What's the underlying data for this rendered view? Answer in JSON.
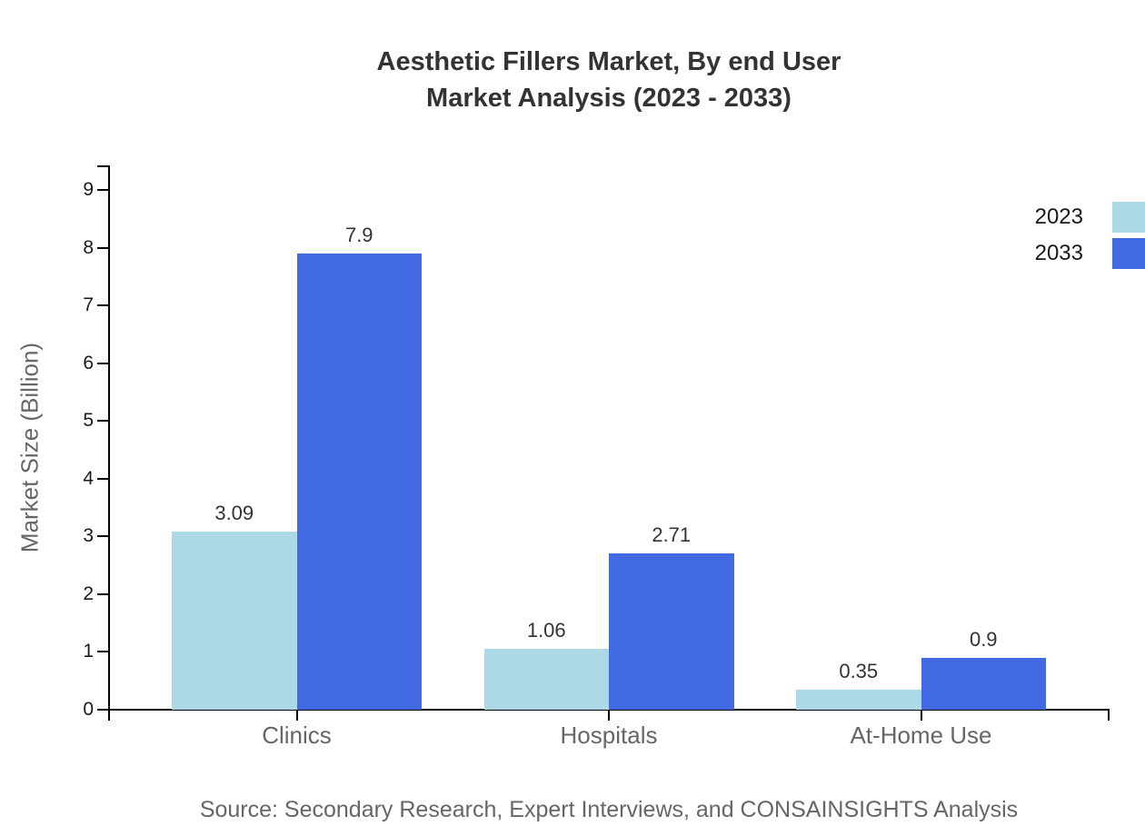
{
  "chart_data": {
    "type": "bar",
    "title_lines": [
      "Aesthetic Fillers Market, By end User",
      "Market Analysis (2023 - 2033)"
    ],
    "ylabel": "Market Size (Billion)",
    "xlabel": "",
    "categories": [
      "Clinics",
      "Hospitals",
      "At-Home Use"
    ],
    "series": [
      {
        "name": "2023",
        "color": "#ADD8E6",
        "values": [
          3.09,
          1.06,
          0.35
        ]
      },
      {
        "name": "2033",
        "color": "#4169E1",
        "values": [
          7.9,
          2.71,
          0.9
        ]
      }
    ],
    "ylim": [
      0,
      9
    ],
    "yticks": [
      0,
      1,
      2,
      3,
      4,
      5,
      6,
      7,
      8,
      9
    ],
    "grid": false,
    "legend_position": "top-right",
    "axis_color": "#000000",
    "value_label_color": "#333333",
    "category_label_color": "#666666"
  },
  "footer": {
    "source": "Source: Secondary Research, Expert Interviews, and CONSAINSIGHTS Analysis"
  }
}
